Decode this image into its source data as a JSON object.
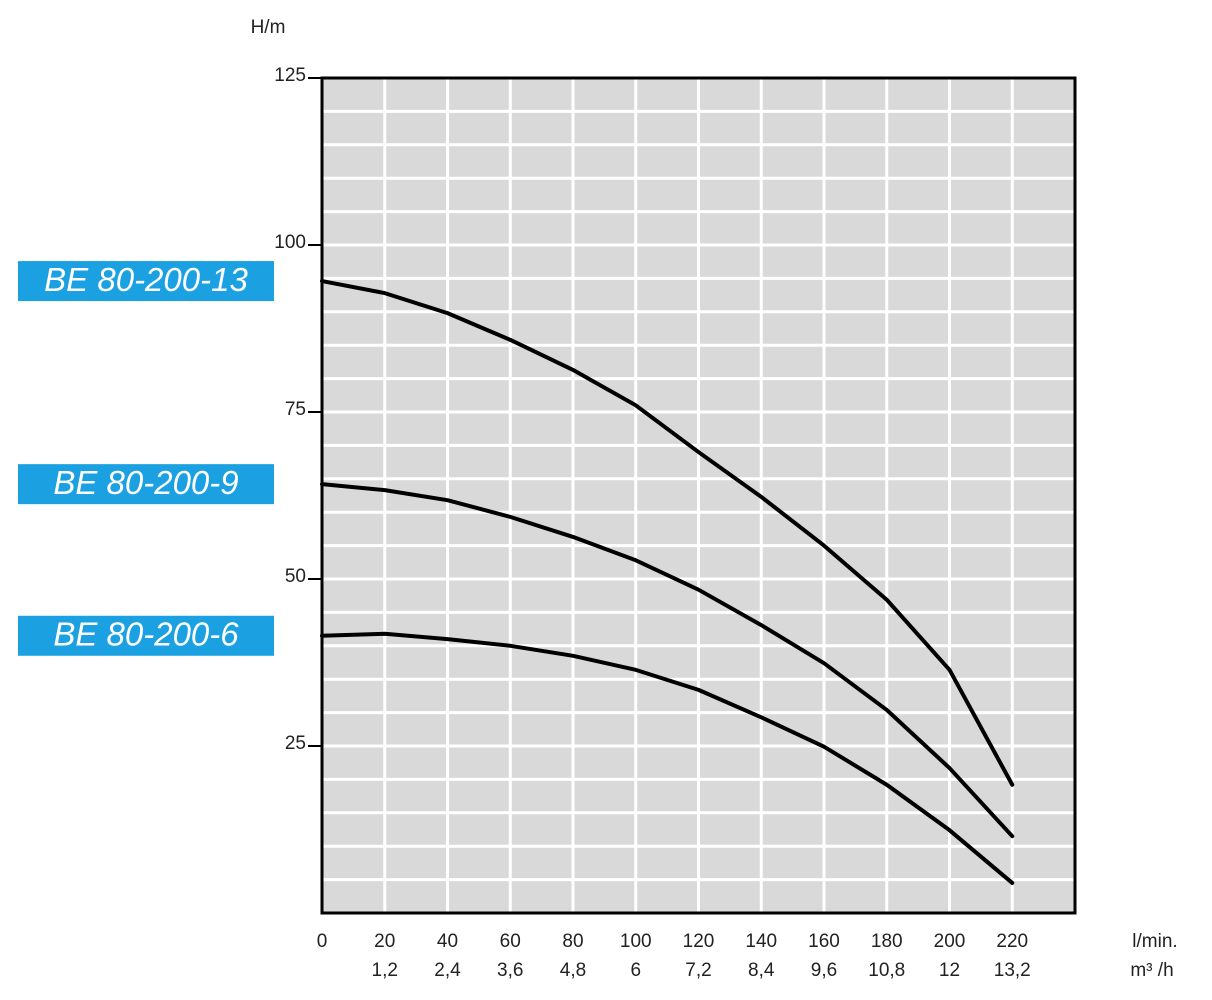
{
  "chart_data": {
    "type": "line",
    "y_label": "H/m",
    "x_label": "l/min.",
    "x2_label": "m³ /h",
    "x": [
      0,
      20,
      40,
      60,
      80,
      100,
      120,
      140,
      160,
      180,
      200,
      220
    ],
    "series": [
      {
        "name": "BE 80-200-13",
        "color": "#000000",
        "label_color": "#1ba1e2",
        "values": [
          94.6,
          92.8,
          89.8,
          85.8,
          81.3,
          76,
          69,
          62.3,
          55,
          46.9,
          36.4,
          19.2
        ]
      },
      {
        "name": "BE 80-200-9",
        "color": "#000000",
        "label_color": "#1ba1e2",
        "values": [
          64.2,
          63.3,
          61.8,
          59.3,
          56.3,
          52.8,
          48.4,
          43.1,
          37.4,
          30.4,
          21.7,
          11.5
        ]
      },
      {
        "name": "BE 80-200-6",
        "color": "#000000",
        "label_color": "#1ba1e2",
        "values": [
          41.5,
          41.8,
          41,
          40,
          38.5,
          36.4,
          33.4,
          29.3,
          24.9,
          19.2,
          12.4,
          4.5
        ]
      }
    ],
    "xlim": [
      0,
      240
    ],
    "ylim": [
      0,
      125
    ],
    "xticks": [
      0,
      20,
      40,
      60,
      80,
      100,
      120,
      140,
      160,
      180,
      200,
      220
    ],
    "x2_tick_labels": [
      null,
      "1,2",
      "2,4",
      "3,6",
      "4,8",
      "6",
      "7,2",
      "8,4",
      "9,6",
      "10,8",
      "12",
      "13,2"
    ],
    "yticks": [
      25,
      50,
      75,
      100,
      125
    ],
    "y_minor_ticks": [
      5,
      10,
      15,
      20,
      30,
      35,
      40,
      45,
      55,
      60,
      65,
      70,
      80,
      85,
      90,
      95,
      105,
      110,
      115,
      120
    ],
    "grid": true,
    "plot_background": "#d9d9d9"
  }
}
